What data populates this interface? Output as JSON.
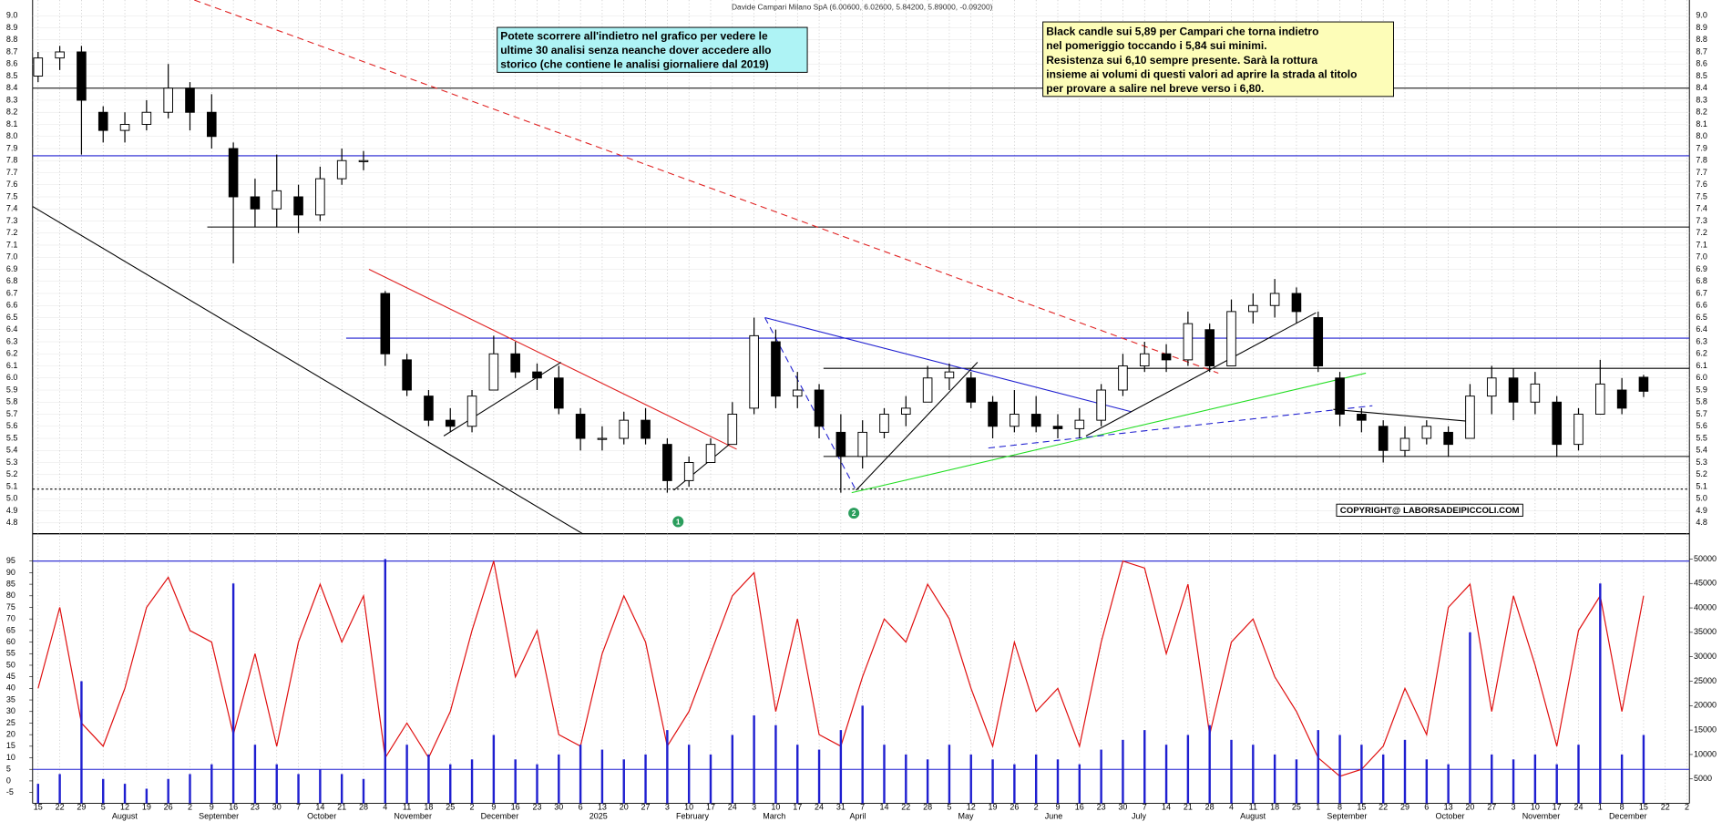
{
  "chart_data": [
    {
      "type": "candlestick",
      "title": "Davide Campari Milano SpA (6.00600, 6.02600, 5.84200, 5.89000, -0.09200)",
      "open": [
        8.5,
        8.65,
        8.7,
        8.2,
        8.05,
        8.1,
        8.2,
        8.4,
        8.2,
        7.9,
        7.5,
        7.4,
        7.5,
        7.35,
        7.65,
        7.8,
        6.7,
        6.15,
        5.85,
        5.65,
        5.6,
        5.9,
        6.2,
        6.05,
        6.0,
        5.7,
        5.5,
        5.5,
        5.65,
        5.45,
        5.15,
        5.3,
        5.45,
        5.75,
        6.3,
        5.85,
        5.9,
        5.55,
        5.35,
        5.55,
        5.7,
        5.8,
        6.0,
        6.0,
        5.8,
        5.6,
        5.7,
        5.6,
        5.58,
        5.65,
        5.9,
        6.1,
        6.2,
        6.15,
        6.4,
        6.1,
        6.55,
        6.6,
        6.7,
        6.5,
        6.0,
        5.7,
        5.6,
        5.4,
        5.5,
        5.55,
        5.5,
        5.85,
        6.0,
        5.8,
        5.8,
        5.45,
        5.7,
        5.9,
        6.006,
        null,
        null
      ],
      "high": [
        8.7,
        8.75,
        8.75,
        8.25,
        8.2,
        8.3,
        8.6,
        8.45,
        8.35,
        7.95,
        7.65,
        7.85,
        7.6,
        7.75,
        7.9,
        7.88,
        6.72,
        6.2,
        5.9,
        5.75,
        5.9,
        6.35,
        6.3,
        6.12,
        6.1,
        5.75,
        5.6,
        5.72,
        5.75,
        5.5,
        5.35,
        5.5,
        5.8,
        6.5,
        6.4,
        6.05,
        5.95,
        5.7,
        5.65,
        5.75,
        5.85,
        6.1,
        6.12,
        6.05,
        5.85,
        5.9,
        5.85,
        5.7,
        5.75,
        5.95,
        6.2,
        6.3,
        6.28,
        6.55,
        6.45,
        6.65,
        6.7,
        6.82,
        6.75,
        6.55,
        6.05,
        5.75,
        5.65,
        5.6,
        5.65,
        5.6,
        5.95,
        6.1,
        6.08,
        6.05,
        5.85,
        5.75,
        6.15,
        6.0,
        6.026,
        null,
        null
      ],
      "low": [
        8.45,
        8.55,
        7.85,
        7.95,
        7.95,
        8.05,
        8.15,
        8.05,
        7.9,
        6.95,
        7.25,
        7.25,
        7.2,
        7.3,
        7.6,
        7.72,
        6.1,
        5.85,
        5.6,
        5.55,
        5.55,
        5.9,
        6.0,
        5.9,
        5.7,
        5.4,
        5.4,
        5.45,
        5.45,
        5.05,
        5.1,
        5.3,
        5.45,
        5.7,
        5.75,
        5.75,
        5.5,
        5.05,
        5.25,
        5.5,
        5.6,
        5.8,
        5.9,
        5.75,
        5.5,
        5.55,
        5.55,
        5.5,
        5.5,
        5.6,
        5.85,
        6.05,
        6.05,
        6.1,
        6.05,
        6.1,
        6.45,
        6.5,
        6.45,
        6.05,
        5.6,
        5.55,
        5.3,
        5.35,
        5.45,
        5.35,
        5.5,
        5.7,
        5.65,
        5.7,
        5.35,
        5.4,
        5.7,
        5.7,
        5.842,
        null,
        null
      ],
      "close": [
        8.65,
        8.7,
        8.3,
        8.05,
        8.1,
        8.2,
        8.4,
        8.2,
        8.0,
        7.5,
        7.4,
        7.55,
        7.35,
        7.65,
        7.8,
        7.8,
        6.2,
        5.9,
        5.65,
        5.6,
        5.85,
        6.2,
        6.05,
        6.0,
        5.75,
        5.5,
        5.5,
        5.65,
        5.5,
        5.15,
        5.3,
        5.45,
        5.7,
        6.35,
        5.85,
        5.9,
        5.6,
        5.35,
        5.55,
        5.7,
        5.75,
        6.0,
        6.05,
        5.8,
        5.6,
        5.7,
        5.6,
        5.58,
        5.65,
        5.9,
        6.1,
        6.2,
        6.15,
        6.45,
        6.1,
        6.55,
        6.6,
        6.7,
        6.55,
        6.1,
        5.7,
        5.65,
        5.4,
        5.5,
        5.6,
        5.45,
        5.85,
        6.0,
        5.8,
        5.95,
        5.45,
        5.7,
        5.95,
        5.75,
        5.89,
        null,
        null
      ],
      "ylim": [
        4.71,
        9.13
      ],
      "yticks": [
        {
          "value": 9.0,
          "label": "9.0"
        },
        8.9,
        8.8,
        8.7,
        8.6,
        8.5,
        8.4,
        8.3,
        8.2,
        8.1,
        {
          "value": 8.0,
          "label": "8.0"
        },
        7.9,
        7.8,
        7.7,
        7.6,
        7.5,
        7.4,
        7.3,
        7.2,
        7.1,
        {
          "value": 7.0,
          "label": "7.0"
        },
        6.9,
        6.8,
        6.7,
        6.6,
        6.5,
        6.4,
        6.3,
        6.2,
        6.1,
        {
          "value": 6.0,
          "label": "6.0"
        },
        5.9,
        5.8,
        5.7,
        5.6,
        5.5,
        5.4,
        5.3,
        5.2,
        5.1,
        {
          "value": 5.0,
          "label": "5.0"
        },
        4.9,
        4.8
      ],
      "levels": [
        {
          "value": 8.4,
          "from": -0.25,
          "color": "#000000",
          "dash": false
        },
        {
          "value": 7.84,
          "from": -0.25,
          "color": "#1f1fd0",
          "dash": false
        },
        {
          "value": 7.25,
          "from": 7.8,
          "color": "#000000",
          "dash": false
        },
        {
          "value": 6.33,
          "from": 14.2,
          "color": "#1f1fd0",
          "dash": false
        },
        {
          "value": 6.08,
          "from": 36.2,
          "color": "#000000",
          "dash": false
        },
        {
          "value": 5.35,
          "from": 36.2,
          "color": "#000000",
          "dash": false
        },
        {
          "value": 5.08,
          "from": -0.25,
          "color": "#000000",
          "dash": true
        }
      ],
      "trendlines": [
        {
          "x": [
            -0.25,
            25.1
          ],
          "y": [
            7.42,
            4.71
          ],
          "color": "#000000",
          "dash": false
        },
        {
          "x": [
            7.2,
            54.4
          ],
          "y": [
            9.13,
            6.04
          ],
          "color": "#e02020",
          "dash": true
        },
        {
          "x": [
            15.25,
            32.2
          ],
          "y": [
            6.9,
            5.41
          ],
          "color": "#e02020",
          "dash": false
        },
        {
          "x": [
            18.7,
            24.1
          ],
          "y": [
            5.52,
            6.13
          ],
          "color": "#000000",
          "dash": false
        },
        {
          "x": [
            29.3,
            32.2
          ],
          "y": [
            5.07,
            5.5
          ],
          "color": "#000000",
          "dash": false
        },
        {
          "x": [
            33.5,
            50.4
          ],
          "y": [
            6.5,
            5.72
          ],
          "color": "#1f1fd0",
          "dash": false
        },
        {
          "x": [
            33.5,
            37.7
          ],
          "y": [
            6.5,
            5.07
          ],
          "color": "#1f1fd0",
          "dash": true
        },
        {
          "x": [
            37.7,
            43.3
          ],
          "y": [
            5.07,
            6.13
          ],
          "color": "#000000",
          "dash": false
        },
        {
          "x": [
            37.5,
            61.2
          ],
          "y": [
            5.05,
            6.04
          ],
          "color": "#22dd22",
          "dash": false
        },
        {
          "x": [
            43.8,
            61.5
          ],
          "y": [
            5.42,
            5.77
          ],
          "color": "#1f1fd0",
          "dash": true
        },
        {
          "x": [
            48.3,
            58.9
          ],
          "y": [
            5.52,
            6.54
          ],
          "color": "#000000",
          "dash": false
        },
        {
          "x": [
            59.7,
            66.0
          ],
          "y": [
            5.74,
            5.64
          ],
          "color": "#000000",
          "dash": false
        }
      ],
      "markers": [
        {
          "label": "1",
          "x": 29.5,
          "y": 4.81,
          "color": "#2a9d5c"
        },
        {
          "label": "2",
          "x": 37.6,
          "y": 4.88,
          "color": "#2a9d5c"
        }
      ],
      "notes": {
        "blue_box": [
          "Potete scorrere all'indietro nel grafico per vedere le",
          "ultime 30 analisi senza neanche dover accedere allo",
          "storico (che contiene le analisi giornaliere dal 2019)"
        ],
        "yellow_box": [
          "Black candle sui 5,89 per Campari che torna indietro",
          "nel pomeriggio toccando i 5,84 sui minimi.",
          "Resistenza sui 6,10 sempre presente. Sarà la rottura",
          "insieme ai volumi di questi valori ad aprire la strada al titolo",
          "per provare a salire nel breve verso i 6,80."
        ],
        "copyright": "COPYRIGHT@ LABORSADEIPICCOLI.COM"
      }
    },
    {
      "type": "line",
      "categories": [
        "15",
        "22",
        "29",
        "5",
        "12",
        "19",
        "26",
        "2",
        "9",
        "16",
        "23",
        "30",
        "7",
        "14",
        "21",
        "28",
        "4",
        "11",
        "18",
        "25",
        "2",
        "9",
        "16",
        "23",
        "30",
        "6",
        "13",
        "20",
        "27",
        "3",
        "10",
        "17",
        "24",
        "3",
        "10",
        "17",
        "24",
        "31",
        "7",
        "14",
        "22",
        "28",
        "5",
        "12",
        "19",
        "26",
        "2",
        "9",
        "16",
        "23",
        "30",
        "7",
        "14",
        "21",
        "28",
        "4",
        "11",
        "18",
        "25",
        "1",
        "8",
        "15",
        "22",
        "29",
        "6",
        "13",
        "20",
        "27",
        "3",
        "10",
        "17",
        "24",
        "1",
        "8",
        "15",
        "22",
        "2"
      ],
      "months": [
        null,
        null,
        null,
        "August",
        null,
        null,
        null,
        "September",
        null,
        null,
        null,
        null,
        "October",
        null,
        null,
        null,
        "November",
        null,
        null,
        null,
        "December",
        null,
        null,
        null,
        null,
        "2025",
        null,
        null,
        null,
        "February",
        null,
        null,
        null,
        "March",
        null,
        null,
        null,
        "April",
        null,
        null,
        null,
        null,
        "May",
        null,
        null,
        null,
        "June",
        null,
        null,
        null,
        "July",
        null,
        null,
        null,
        null,
        "August",
        null,
        null,
        null,
        "September",
        null,
        null,
        null,
        null,
        "October",
        null,
        null,
        null,
        "November",
        null,
        null,
        null,
        "December",
        null,
        null,
        null,
        null
      ],
      "series": [
        {
          "name": "oscillator",
          "color": "#e01010",
          "axis": "y",
          "values": [
            40,
            75,
            25,
            15,
            40,
            75,
            88,
            65,
            60,
            20,
            55,
            15,
            60,
            85,
            60,
            80,
            10,
            25,
            10,
            30,
            65,
            95,
            45,
            65,
            20,
            15,
            55,
            80,
            60,
            15,
            30,
            55,
            80,
            90,
            30,
            70,
            20,
            15,
            45,
            70,
            60,
            85,
            70,
            40,
            15,
            60,
            30,
            40,
            15,
            60,
            95,
            92,
            55,
            85,
            20,
            60,
            70,
            45,
            30,
            10,
            2,
            5,
            15,
            40,
            20,
            75,
            85,
            30,
            80,
            50,
            15,
            65,
            80,
            30,
            80,
            null,
            null
          ]
        },
        {
          "name": "volume",
          "color": "#1f1fd0",
          "axis": "y2",
          "values": [
            4000,
            6000,
            25000,
            5000,
            4000,
            3000,
            5000,
            6000,
            8000,
            45000,
            12000,
            8000,
            6000,
            7000,
            6000,
            5000,
            50000,
            12000,
            10000,
            8000,
            9000,
            14000,
            9000,
            8000,
            10000,
            12000,
            11000,
            9000,
            10000,
            15000,
            12000,
            10000,
            14000,
            18000,
            16000,
            12000,
            11000,
            15000,
            20000,
            12000,
            10000,
            9000,
            12000,
            10000,
            9000,
            8000,
            10000,
            9000,
            8000,
            11000,
            13000,
            15000,
            12000,
            14000,
            16000,
            13000,
            12000,
            10000,
            9000,
            15000,
            14000,
            12000,
            10000,
            13000,
            9000,
            8000,
            35000,
            10000,
            9000,
            10000,
            8000,
            12000,
            45000,
            10000,
            14000,
            null,
            null
          ]
        }
      ],
      "ylim": [
        -9.7,
        105.4
      ],
      "yticks": [
        95,
        90,
        85,
        80,
        75,
        70,
        65,
        60,
        55,
        50,
        45,
        40,
        35,
        30,
        25,
        20,
        15,
        10,
        5,
        0,
        -5
      ],
      "y2lim": [
        0,
        54500
      ],
      "y2ticks": [
        50000,
        45000,
        40000,
        35000,
        30000,
        25000,
        20000,
        15000,
        10000,
        5000
      ],
      "levels": [
        95,
        5
      ]
    }
  ]
}
